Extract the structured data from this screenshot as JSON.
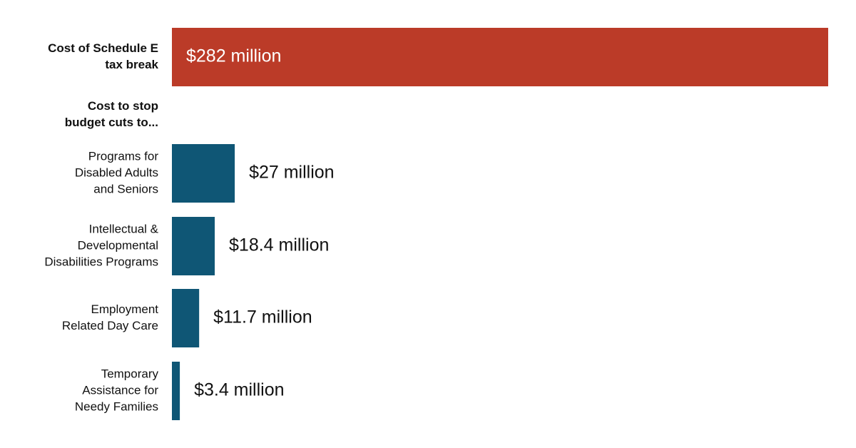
{
  "chart_data": {
    "type": "bar",
    "orientation": "horizontal",
    "categories": [
      [
        "Cost of Schedule E",
        "tax break"
      ],
      [
        "Programs for",
        "Disabled Adults",
        "and Seniors"
      ],
      [
        "Intellectual &",
        "Developmental",
        "Disabilities Programs"
      ],
      [
        "Employment",
        "Related Day Care"
      ],
      [
        "Temporary",
        "Assistance for",
        "Needy Families"
      ]
    ],
    "values": [
      282,
      27,
      18.4,
      11.7,
      3.4
    ],
    "value_labels": [
      "$282 million",
      "$27 million",
      "$18.4 million",
      "$11.7 million",
      "$3.4 million"
    ],
    "colors": [
      "#bb3b28",
      "#0f5675",
      "#0f5675",
      "#0f5675",
      "#0f5675"
    ],
    "group_label": [
      "Cost to stop",
      "budget cuts to..."
    ]
  }
}
